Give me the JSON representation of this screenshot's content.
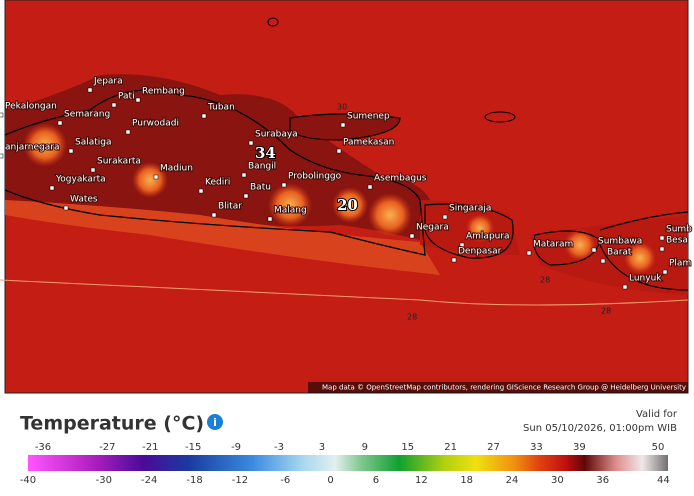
{
  "map": {
    "cities": [
      "Jepara",
      "Rembang",
      "Pati",
      "Pekalongan",
      "Semarang",
      "Tuban",
      "Purwodadi",
      "Sumenep",
      "Surabaya",
      "Pamekasan",
      "Salatiga",
      "anjarnegara",
      "Surakarta",
      "Madiun",
      "Yogyakarta",
      "Kediri",
      "Probolinggo",
      "Asembagus",
      "Bangil",
      "Batu",
      "Wates",
      "Blitar",
      "Malang",
      "Singaraja",
      "Negara",
      "Amlapura",
      "Denpasar",
      "Mataram",
      "Sumbawa",
      "Barat",
      "Sumb",
      "Besa",
      "Plam",
      "Lunyuk"
    ],
    "point_values": [
      34,
      20
    ],
    "contours": [
      30,
      28,
      28,
      28
    ],
    "attribution": "Map data © OpenStreetMap contributors, rendering GIScience Research Group @ Heidelberg University"
  },
  "legend": {
    "title": "Temperature (°C)",
    "valid_label": "Valid for",
    "valid_time": "Sun 05/10/2026, 01:00pm WIB",
    "top_ticks": [
      -36,
      -27,
      -21,
      -15,
      -9,
      -3,
      3,
      9,
      15,
      21,
      27,
      33,
      39,
      50
    ],
    "bottom_ticks": [
      -40,
      -30,
      -24,
      -18,
      -12,
      -6,
      0,
      6,
      12,
      18,
      24,
      30,
      36,
      44
    ]
  }
}
